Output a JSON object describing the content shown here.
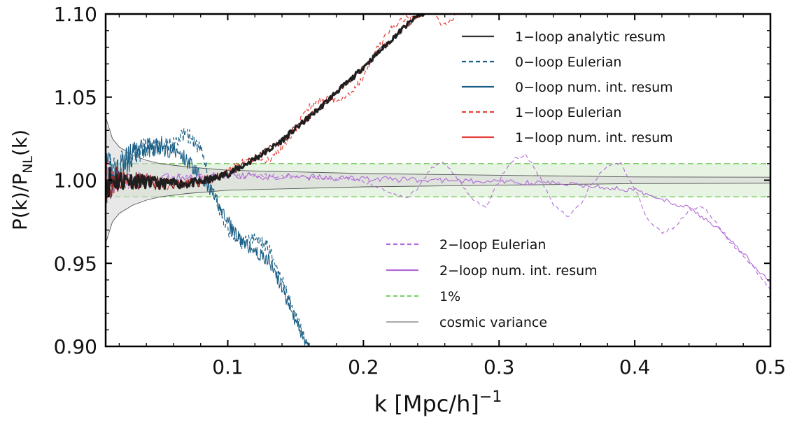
{
  "chart_data": {
    "type": "line",
    "xlabel_main": "k [Mpc/h]",
    "xlabel_sup": "−1",
    "ylabel_main": "P(k)/P",
    "ylabel_sub": "NL",
    "ylabel_tail": "(k)",
    "xlim": [
      0.01,
      0.5
    ],
    "ylim": [
      0.9,
      1.1
    ],
    "xticks": [
      0.1,
      0.2,
      0.3,
      0.4,
      0.5
    ],
    "xtick_labels": [
      "0.1",
      "0.2",
      "0.3",
      "0.4",
      "0.5"
    ],
    "yticks": [
      0.9,
      0.95,
      1.0,
      1.05,
      1.1
    ],
    "ytick_labels": [
      "0.90",
      "0.95",
      "1.00",
      "1.05",
      "1.10"
    ],
    "grid": false,
    "legend_upper": {
      "placement": "top-right",
      "entries": [
        {
          "label": "1−loop analytic resum",
          "color": "#333333",
          "dash": "solid"
        },
        {
          "label": "0−loop Eulerian",
          "color": "#1a5f86",
          "dash": "dashed"
        },
        {
          "label": "0−loop num. int. resum",
          "color": "#1a5f86",
          "dash": "solid"
        },
        {
          "label": "1−loop Eulerian",
          "color": "#e8403a",
          "dash": "dashed"
        },
        {
          "label": "1−loop num. int. resum",
          "color": "#e8403a",
          "dash": "solid"
        }
      ]
    },
    "legend_lower": {
      "placement": "lower-center",
      "entries": [
        {
          "label": "2−loop Eulerian",
          "color": "#b26ad9",
          "dash": "dashed"
        },
        {
          "label": "2−loop num. int. resum",
          "color": "#b26ad9",
          "dash": "solid"
        },
        {
          "label": "1%",
          "color": "#7fd06a",
          "dash": "dashed"
        },
        {
          "label": "cosmic variance",
          "color": "#555555",
          "dash": "thin"
        }
      ]
    },
    "one_percent_band": [
      0.99,
      1.01
    ],
    "series": [
      {
        "name": "cosmic variance",
        "x": [
          0.01,
          0.015,
          0.02,
          0.03,
          0.04,
          0.05,
          0.07,
          0.1,
          0.15,
          0.2,
          0.3,
          0.4,
          0.5
        ],
        "upper": [
          1.038,
          1.025,
          1.02,
          1.015,
          1.012,
          1.01,
          1.008,
          1.006,
          1.005,
          1.004,
          1.003,
          1.002,
          1.0018
        ],
        "lower": [
          0.962,
          0.975,
          0.98,
          0.985,
          0.988,
          0.99,
          0.992,
          0.994,
          0.995,
          0.996,
          0.997,
          0.998,
          0.9982
        ]
      },
      {
        "name": "1−loop analytic resum",
        "x": [
          0.01,
          0.03,
          0.05,
          0.07,
          0.08,
          0.09,
          0.1,
          0.11,
          0.12,
          0.13,
          0.14,
          0.15,
          0.16,
          0.17,
          0.18,
          0.19,
          0.2,
          0.21,
          0.22,
          0.23,
          0.24,
          0.25
        ],
        "y": [
          1.0,
          1.0,
          0.998,
          0.998,
          0.999,
          1.001,
          1.004,
          1.008,
          1.013,
          1.018,
          1.024,
          1.031,
          1.038,
          1.045,
          1.053,
          1.06,
          1.068,
          1.076,
          1.084,
          1.092,
          1.099,
          1.102
        ]
      },
      {
        "name": "1−loop num. int. resum",
        "x": [
          0.01,
          0.03,
          0.05,
          0.07,
          0.08,
          0.09,
          0.1,
          0.11,
          0.12,
          0.13,
          0.14,
          0.15,
          0.16,
          0.17,
          0.18,
          0.19,
          0.2,
          0.21,
          0.22,
          0.23,
          0.24,
          0.25
        ],
        "y": [
          1.0,
          1.0,
          0.998,
          0.998,
          0.999,
          1.001,
          1.004,
          1.008,
          1.013,
          1.018,
          1.024,
          1.031,
          1.038,
          1.045,
          1.053,
          1.06,
          1.068,
          1.076,
          1.084,
          1.092,
          1.099,
          1.102
        ]
      },
      {
        "name": "1−loop Eulerian",
        "x": [
          0.01,
          0.03,
          0.05,
          0.07,
          0.09,
          0.11,
          0.12,
          0.13,
          0.14,
          0.15,
          0.16,
          0.17,
          0.18,
          0.19,
          0.2,
          0.21,
          0.22,
          0.23,
          0.24,
          0.25,
          0.255,
          0.26,
          0.265,
          0.27
        ],
        "y": [
          1.0,
          1.0,
          0.998,
          0.998,
          1.001,
          1.01,
          1.013,
          1.012,
          1.02,
          1.031,
          1.044,
          1.049,
          1.048,
          1.052,
          1.062,
          1.079,
          1.091,
          1.097,
          1.099,
          1.104,
          1.096,
          1.093,
          1.097,
          1.102
        ]
      },
      {
        "name": "0−loop num. int. resum",
        "x": [
          0.01,
          0.02,
          0.03,
          0.04,
          0.05,
          0.06,
          0.07,
          0.08,
          0.09,
          0.1,
          0.11,
          0.12,
          0.13,
          0.14,
          0.15,
          0.16
        ],
        "y": [
          1.0,
          1.008,
          1.015,
          1.02,
          1.02,
          1.018,
          1.012,
          1.003,
          0.99,
          0.975,
          0.963,
          0.957,
          0.952,
          0.935,
          0.915,
          0.898
        ]
      },
      {
        "name": "0−loop Eulerian",
        "x": [
          0.01,
          0.02,
          0.03,
          0.04,
          0.05,
          0.06,
          0.07,
          0.08,
          0.09,
          0.1,
          0.11,
          0.12,
          0.13,
          0.14,
          0.15,
          0.16
        ],
        "y": [
          1.0,
          1.008,
          1.015,
          1.02,
          1.021,
          1.023,
          1.028,
          1.018,
          0.99,
          0.97,
          0.962,
          0.965,
          0.96,
          0.94,
          0.918,
          0.899
        ]
      },
      {
        "name": "2−loop num. int. resum",
        "x": [
          0.01,
          0.05,
          0.1,
          0.15,
          0.2,
          0.25,
          0.3,
          0.35,
          0.4,
          0.42,
          0.44,
          0.46,
          0.48,
          0.5
        ],
        "y": [
          1.0,
          1.0,
          1.003,
          1.002,
          1.001,
          1.0,
          0.999,
          0.998,
          0.994,
          0.989,
          0.983,
          0.972,
          0.956,
          0.938
        ]
      },
      {
        "name": "2−loop Eulerian",
        "x": [
          0.01,
          0.05,
          0.1,
          0.15,
          0.19,
          0.2,
          0.21,
          0.22,
          0.23,
          0.24,
          0.25,
          0.26,
          0.27,
          0.28,
          0.29,
          0.3,
          0.31,
          0.32,
          0.33,
          0.34,
          0.35,
          0.36,
          0.37,
          0.38,
          0.39,
          0.4,
          0.41,
          0.42,
          0.43,
          0.44,
          0.45,
          0.46,
          0.47,
          0.48,
          0.49,
          0.5
        ],
        "y": [
          1.0,
          1.0,
          1.003,
          1.002,
          1.001,
          1.0,
          0.996,
          0.992,
          0.989,
          0.994,
          1.008,
          1.011,
          1.0,
          0.988,
          0.983,
          1.0,
          1.012,
          1.015,
          1.002,
          0.985,
          0.978,
          0.985,
          1.0,
          1.008,
          1.01,
          0.995,
          0.976,
          0.968,
          0.972,
          0.982,
          0.984,
          0.975,
          0.963,
          0.955,
          0.945,
          0.934
        ]
      }
    ]
  }
}
